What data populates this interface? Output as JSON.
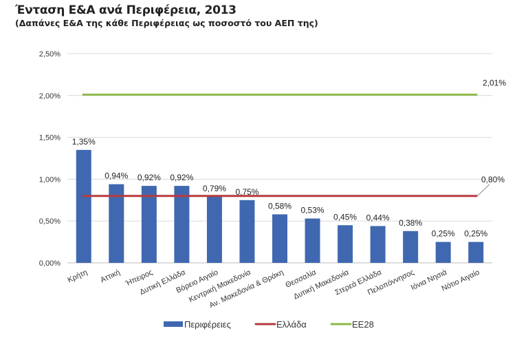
{
  "chart_data": {
    "type": "bar",
    "title": "Ένταση Ε&Α ανά Περιφέρεια, 2013",
    "subtitle": "(Δαπάνες Ε&Α της κάθε Περιφέρειας  ως ποσοστό του ΑΕΠ της)",
    "categories": [
      "Κρήτη",
      "Αττική",
      "Ήπειρος",
      "Δυτική Ελλάδα",
      "Βόρειο Αιγαίο",
      "Κεντρική Μακεδονία",
      "Αν. Μακεδονία & Θράκη",
      "Θεσσαλία",
      "Δυτική Μακεδονία",
      "Στερεά Ελλάδα",
      "Πελοπόννησος",
      "Ιόνια Νησιά",
      "Νότιο Αιγαίο"
    ],
    "series": [
      {
        "name": "Περιφέρειες",
        "type": "bar",
        "color": "#4068B0",
        "values": [
          1.35,
          0.94,
          0.92,
          0.92,
          0.79,
          0.75,
          0.58,
          0.53,
          0.45,
          0.44,
          0.38,
          0.25,
          0.25
        ],
        "labels": [
          "1,35%",
          "0,94%",
          "0,92%",
          "0,92%",
          "0,79%",
          "0,75%",
          "0,58%",
          "0,53%",
          "0,45%",
          "0,44%",
          "0,38%",
          "0,25%",
          "0,25%"
        ]
      },
      {
        "name": "Ελλάδα",
        "type": "line",
        "color": "#B83A3E",
        "value": 0.8,
        "label": "0,80%"
      },
      {
        "name": "ΕΕ28",
        "type": "line",
        "color": "#8DB84A",
        "value": 2.01,
        "label": "2,01%"
      }
    ],
    "ylim": [
      0,
      2.5
    ],
    "yticks": [
      0,
      0.5,
      1,
      1.5,
      2,
      2.5
    ],
    "ytick_labels": [
      "0,00%",
      "0,50%",
      "1,00%",
      "1,50%",
      "2,00%",
      "2,50%"
    ],
    "grid": true,
    "legend": "bottom"
  }
}
